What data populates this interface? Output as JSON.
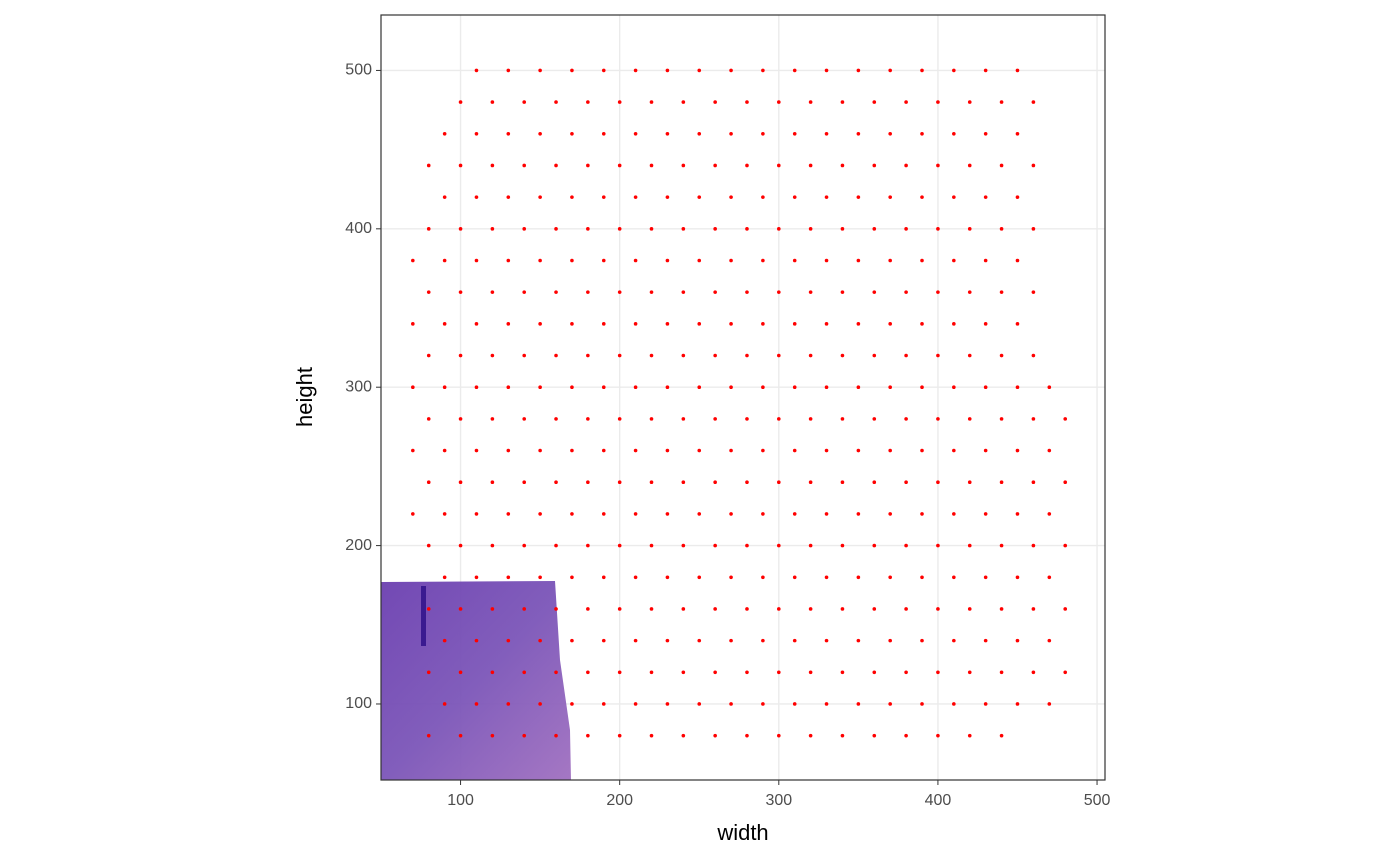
{
  "chart_data": {
    "type": "scatter",
    "x_label": "width",
    "y_label": "height",
    "color": "#ff0000",
    "xlim": [
      50,
      505
    ],
    "ylim": [
      52,
      535
    ],
    "xticks": [
      100,
      200,
      300,
      400,
      500
    ],
    "yticks": [
      100,
      200,
      300,
      400,
      500
    ],
    "grid": true,
    "x": [
      80,
      100,
      120,
      140,
      160,
      180,
      200,
      220,
      240,
      260,
      280,
      300,
      320,
      340,
      360,
      380,
      400,
      420,
      440,
      90,
      110,
      130,
      150,
      170,
      190,
      210,
      230,
      250,
      270,
      290,
      310,
      330,
      350,
      370,
      390,
      410,
      430,
      450,
      470,
      80,
      100,
      120,
      140,
      160,
      180,
      200,
      220,
      240,
      260,
      280,
      300,
      320,
      340,
      360,
      380,
      400,
      420,
      440,
      460,
      480,
      90,
      110,
      130,
      150,
      170,
      190,
      210,
      230,
      250,
      270,
      290,
      310,
      330,
      350,
      370,
      390,
      410,
      430,
      450,
      470,
      80,
      100,
      120,
      140,
      160,
      180,
      200,
      220,
      240,
      260,
      280,
      300,
      320,
      340,
      360,
      380,
      400,
      420,
      440,
      460,
      480,
      90,
      110,
      130,
      150,
      170,
      190,
      210,
      230,
      250,
      270,
      290,
      310,
      330,
      350,
      370,
      390,
      410,
      430,
      450,
      470,
      80,
      100,
      120,
      140,
      160,
      180,
      200,
      220,
      240,
      260,
      280,
      300,
      320,
      340,
      360,
      380,
      400,
      420,
      440,
      460,
      480,
      70,
      90,
      110,
      130,
      150,
      170,
      190,
      210,
      230,
      250,
      270,
      290,
      310,
      330,
      350,
      370,
      390,
      410,
      430,
      450,
      470,
      80,
      100,
      120,
      140,
      160,
      180,
      200,
      220,
      240,
      260,
      280,
      300,
      320,
      340,
      360,
      380,
      400,
      420,
      440,
      460,
      480,
      70,
      90,
      110,
      130,
      150,
      170,
      190,
      210,
      230,
      250,
      270,
      290,
      310,
      330,
      350,
      370,
      390,
      410,
      430,
      450,
      470,
      80,
      100,
      120,
      140,
      160,
      180,
      200,
      220,
      240,
      260,
      280,
      300,
      320,
      340,
      360,
      380,
      400,
      420,
      440,
      460,
      480,
      70,
      90,
      110,
      130,
      150,
      170,
      190,
      210,
      230,
      250,
      270,
      290,
      310,
      330,
      350,
      370,
      390,
      410,
      430,
      450,
      470,
      80,
      100,
      120,
      140,
      160,
      180,
      200,
      220,
      240,
      260,
      280,
      300,
      320,
      340,
      360,
      380,
      400,
      420,
      440,
      460,
      70,
      90,
      110,
      130,
      150,
      170,
      190,
      210,
      230,
      250,
      270,
      290,
      310,
      330,
      350,
      370,
      390,
      410,
      430,
      450,
      80,
      100,
      120,
      140,
      160,
      180,
      200,
      220,
      240,
      260,
      280,
      300,
      320,
      340,
      360,
      380,
      400,
      420,
      440,
      460,
      70,
      90,
      110,
      130,
      150,
      170,
      190,
      210,
      230,
      250,
      270,
      290,
      310,
      330,
      350,
      370,
      390,
      410,
      430,
      450,
      80,
      100,
      120,
      140,
      160,
      180,
      200,
      220,
      240,
      260,
      280,
      300,
      320,
      340,
      360,
      380,
      400,
      420,
      440,
      460,
      90,
      110,
      130,
      150,
      170,
      190,
      210,
      230,
      250,
      270,
      290,
      310,
      330,
      350,
      370,
      390,
      410,
      430,
      450,
      80,
      100,
      120,
      140,
      160,
      180,
      200,
      220,
      240,
      260,
      280,
      300,
      320,
      340,
      360,
      380,
      400,
      420,
      440,
      460,
      90,
      110,
      130,
      150,
      170,
      190,
      210,
      230,
      250,
      270,
      290,
      310,
      330,
      350,
      370,
      390,
      410,
      430,
      450,
      100,
      120,
      140,
      160,
      180,
      200,
      220,
      240,
      260,
      280,
      300,
      320,
      340,
      360,
      380,
      400,
      420,
      440,
      460,
      110,
      130,
      150,
      170,
      190,
      210,
      230,
      250,
      270,
      290,
      310,
      330,
      350,
      370,
      390,
      410,
      430,
      450
    ],
    "values": [
      80,
      80,
      80,
      80,
      80,
      80,
      80,
      80,
      80,
      80,
      80,
      80,
      80,
      80,
      80,
      80,
      80,
      80,
      80,
      100,
      100,
      100,
      100,
      100,
      100,
      100,
      100,
      100,
      100,
      100,
      100,
      100,
      100,
      100,
      100,
      100,
      100,
      100,
      100,
      120,
      120,
      120,
      120,
      120,
      120,
      120,
      120,
      120,
      120,
      120,
      120,
      120,
      120,
      120,
      120,
      120,
      120,
      120,
      120,
      120,
      140,
      140,
      140,
      140,
      140,
      140,
      140,
      140,
      140,
      140,
      140,
      140,
      140,
      140,
      140,
      140,
      140,
      140,
      140,
      140,
      160,
      160,
      160,
      160,
      160,
      160,
      160,
      160,
      160,
      160,
      160,
      160,
      160,
      160,
      160,
      160,
      160,
      160,
      160,
      160,
      160,
      180,
      180,
      180,
      180,
      180,
      180,
      180,
      180,
      180,
      180,
      180,
      180,
      180,
      180,
      180,
      180,
      180,
      180,
      180,
      180,
      200,
      200,
      200,
      200,
      200,
      200,
      200,
      200,
      200,
      200,
      200,
      200,
      200,
      200,
      200,
      200,
      200,
      200,
      200,
      200,
      200,
      220,
      220,
      220,
      220,
      220,
      220,
      220,
      220,
      220,
      220,
      220,
      220,
      220,
      220,
      220,
      220,
      220,
      220,
      220,
      220,
      220,
      240,
      240,
      240,
      240,
      240,
      240,
      240,
      240,
      240,
      240,
      240,
      240,
      240,
      240,
      240,
      240,
      240,
      240,
      240,
      240,
      240,
      260,
      260,
      260,
      260,
      260,
      260,
      260,
      260,
      260,
      260,
      260,
      260,
      260,
      260,
      260,
      260,
      260,
      260,
      260,
      260,
      260,
      280,
      280,
      280,
      280,
      280,
      280,
      280,
      280,
      280,
      280,
      280,
      280,
      280,
      280,
      280,
      280,
      280,
      280,
      280,
      280,
      280,
      300,
      300,
      300,
      300,
      300,
      300,
      300,
      300,
      300,
      300,
      300,
      300,
      300,
      300,
      300,
      300,
      300,
      300,
      300,
      300,
      300,
      320,
      320,
      320,
      320,
      320,
      320,
      320,
      320,
      320,
      320,
      320,
      320,
      320,
      320,
      320,
      320,
      320,
      320,
      320,
      320,
      340,
      340,
      340,
      340,
      340,
      340,
      340,
      340,
      340,
      340,
      340,
      340,
      340,
      340,
      340,
      340,
      340,
      340,
      340,
      340,
      360,
      360,
      360,
      360,
      360,
      360,
      360,
      360,
      360,
      360,
      360,
      360,
      360,
      360,
      360,
      360,
      360,
      360,
      360,
      360,
      380,
      380,
      380,
      380,
      380,
      380,
      380,
      380,
      380,
      380,
      380,
      380,
      380,
      380,
      380,
      380,
      380,
      380,
      380,
      380,
      400,
      400,
      400,
      400,
      400,
      400,
      400,
      400,
      400,
      400,
      400,
      400,
      400,
      400,
      400,
      400,
      400,
      400,
      400,
      400,
      420,
      420,
      420,
      420,
      420,
      420,
      420,
      420,
      420,
      420,
      420,
      420,
      420,
      420,
      420,
      420,
      420,
      420,
      420,
      440,
      440,
      440,
      440,
      440,
      440,
      440,
      440,
      440,
      440,
      440,
      440,
      440,
      440,
      440,
      440,
      440,
      440,
      440,
      440,
      460,
      460,
      460,
      460,
      460,
      460,
      460,
      460,
      460,
      460,
      460,
      460,
      460,
      460,
      460,
      460,
      460,
      460,
      460,
      480,
      480,
      480,
      480,
      480,
      480,
      480,
      480,
      480,
      480,
      480,
      480,
      480,
      480,
      480,
      480,
      480,
      480,
      480,
      500,
      500,
      500,
      500,
      500,
      500,
      500,
      500,
      500,
      500,
      500,
      500,
      500,
      500,
      500,
      500,
      500,
      500
    ]
  }
}
